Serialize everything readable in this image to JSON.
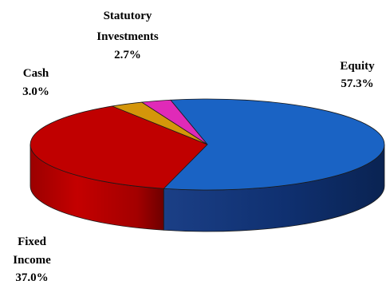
{
  "chart_data": {
    "type": "pie",
    "title": "",
    "legend": "none",
    "slices": [
      {
        "label": "Equity",
        "value": 57.3,
        "value_label": "57.3%",
        "color": "#1a63c4"
      },
      {
        "label": "Fixed Income",
        "value": 37.0,
        "value_label": "37.0%",
        "color": "#c00000"
      },
      {
        "label": "Cash",
        "value": 3.0,
        "value_label": "3.0%",
        "color": "#d4960a"
      },
      {
        "label": "Statutory Investments",
        "value": 2.7,
        "value_label": "2.7%",
        "color": "#e02ab8"
      }
    ]
  },
  "labels": {
    "equity": {
      "name": "Equity",
      "value": "57.3%"
    },
    "fixed_income": {
      "name_line1": "Fixed",
      "name_line2": "Income",
      "value": "37.0%"
    },
    "cash": {
      "name": "Cash",
      "value": "3.0%"
    },
    "statutory": {
      "name_line1": "Statutory",
      "name_line2": "Investments",
      "value": "2.7%"
    }
  }
}
